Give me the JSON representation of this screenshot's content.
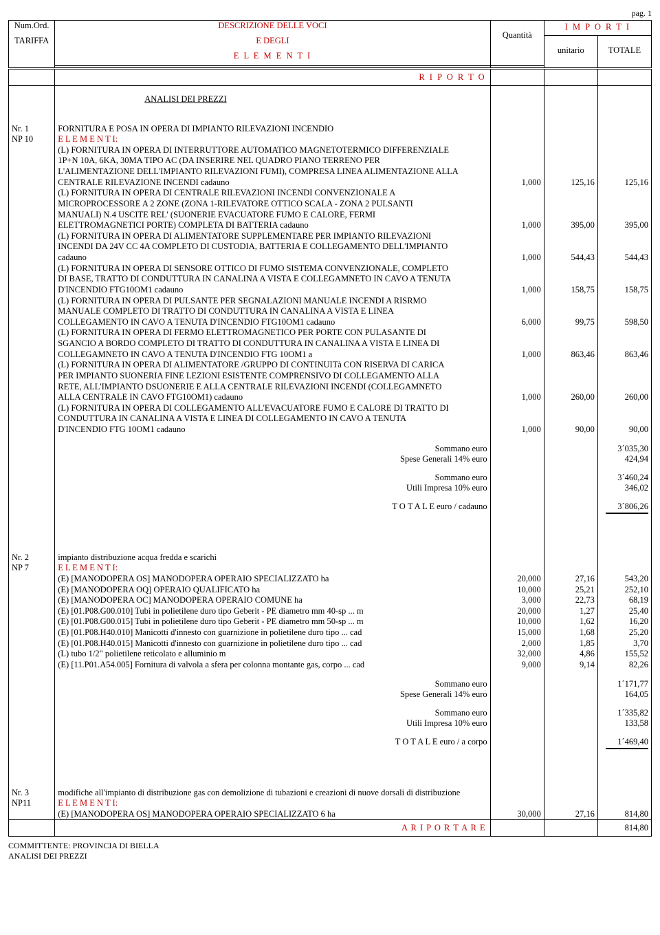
{
  "page_label": "pag. 1",
  "header": {
    "numord": "Num.Ord.",
    "tariffa": "TARIFFA",
    "desc1": "DESCRIZIONE DELLE VOCI",
    "desc2": "E DEGLI",
    "desc3": "E L E M E N T I",
    "quantita": "Quantità",
    "importi": "I M P O R T I",
    "unitario": "unitario",
    "totale": "TOTALE",
    "riporto": "R I P O R T O"
  },
  "section_title": "ANALISI DEI PREZZI",
  "entry1": {
    "nr": "Nr. 1",
    "code": "NP 10",
    "title": "FORNITURA E POSA IN OPERA DI IMPIANTO RILEVAZIONI INCENDIO",
    "elementi_label": "E L E M E N T I:",
    "lines": [
      {
        "text": "(L)  FORNITURA IN OPERA DI INTERRUTTORE AUTOMATICO MAGNETOTERMICO DIFFERENZIALE"
      },
      {
        "text": "1P+N 10A, 6KA, 30MA TIPO AC (DA INSERIRE NEL QUADRO PIANO TERRENO PER"
      },
      {
        "text": "L'ALIMENTAZIONE DELL'IMPIANTO RILEVAZIONI FUMI), COMPRESA LINEA ALIMENTAZIONE ALLA"
      },
      {
        "text": "CENTRALE RILEVAZIONE INCENDI cadauno",
        "qty": "1,000",
        "unit": "125,16",
        "tot": "125,16"
      },
      {
        "text": "(L)  FORNITURA IN OPERA DI CENTRALE RILEVAZIONI INCENDI CONVENZIONALE A"
      },
      {
        "text": "MICROPROCESSORE A 2 ZONE (ZONA 1-RILEVATORE OTTICO SCALA - ZONA 2 PULSANTI"
      },
      {
        "text": "MANUALI) N.4 USCITE REL' (SUONERIE EVACUATORE FUMO E CALORE, FERMI"
      },
      {
        "text": "ELETTROMAGNETICI PORTE) COMPLETA DI BATTERIA cadauno",
        "qty": "1,000",
        "unit": "395,00",
        "tot": "395,00"
      },
      {
        "text": "(L)  FORNITURA IN OPERA DI ALIMENTATORE SUPPLEMENTARE PER IMPIANTO RILEVAZIONI"
      },
      {
        "text": "INCENDI DA 24V CC 4A COMPLETO DI CUSTODIA, BATTERIA E COLLEGAMENTO DELL'IMPIANTO"
      },
      {
        "text": "cadauno",
        "qty": "1,000",
        "unit": "544,43",
        "tot": "544,43"
      },
      {
        "text": "(L)  FORNITURA IN OPERA DI SENSORE OTTICO DI FUMO SISTEMA CONVENZIONALE, COMPLETO"
      },
      {
        "text": "DI BASE, TRATTO DI CONDUTTURA IN CANALINA A VISTA E COLLEGAMNETO IN CAVO A TENUTA"
      },
      {
        "text": "D'INCENDIO FTG10OM1 cadauno",
        "qty": "1,000",
        "unit": "158,75",
        "tot": "158,75"
      },
      {
        "text": "(L)  FORNITURA IN OPERA DI PULSANTE PER SEGNALAZIONI MANUALE INCENDI A RISRMO"
      },
      {
        "text": "MANUALE COMPLETO DI TRATTO DI CONDUTTURA IN CANALINA A VISTA E LINEA"
      },
      {
        "text": "COLLEGAMENTO IN CAVO A TENUTA D'INCENDIO FTG10OM1 cadauno",
        "qty": "6,000",
        "unit": "99,75",
        "tot": "598,50"
      },
      {
        "text": "(L)  FORNITURA IN OPERA DI FERMO ELETTROMAGNETICO PER PORTE CON PULASANTE DI"
      },
      {
        "text": "SGANCIO A BORDO COMPLETO DI TRATTO DI CONDUTTURA IN CANALINA A VISTA E LINEA DI"
      },
      {
        "text": "COLLEGAMNETO IN CAVO A TENUTA D'INCENDIO FTG 10OM1 a",
        "qty": "1,000",
        "unit": "863,46",
        "tot": "863,46"
      },
      {
        "text": "(L)  FORNITURA IN OPERA DI ALIMENTATORE /GRUPPO DI CONTINUITà CON RISERVA DI CARICA"
      },
      {
        "text": "PER IMPIANTO SUONERIA FINE LEZIONI ESISTENTE COMPRENSIVO DI COLLEGAMENTO ALLA"
      },
      {
        "text": "RETE, ALL'IMPIANTO DSUONERIE E ALLA CENTRALE RILEVAZIONI INCENDI (COLLEGAMNETO"
      },
      {
        "text": "ALLA CENTRALE IN CAVO FTG10OM1) cadauno",
        "qty": "1,000",
        "unit": "260,00",
        "tot": "260,00"
      },
      {
        "text": "(L)  FORNITURA IN OPERA DI COLLEGAMENTO ALL'EVACUATORE FUMO E CALORE DI TRATTO DI"
      },
      {
        "text": "CONDUTTURA IN CANALINA A VISTA E LINEA DI COLLEGAMENTO IN CAVO A TENUTA"
      },
      {
        "text": "D'INCENDIO FTG 10OM1 cadauno",
        "qty": "1,000",
        "unit": "90,00",
        "tot": "90,00"
      }
    ],
    "subtotals": {
      "sommano1_label": "Sommano euro",
      "sommano1_val": "3´035,30",
      "spese_label": "Spese Generali 14% euro",
      "spese_val": "424,94",
      "sommano2_label": "Sommano euro",
      "sommano2_val": "3´460,24",
      "utili_label": "Utili Impresa 10% euro",
      "utili_val": "346,02",
      "totale_label": "T O T A L E  euro / cadauno",
      "totale_val": "3´806,26"
    }
  },
  "entry2": {
    "nr": "Nr. 2",
    "code": "NP 7",
    "title": "impianto distribuzione acqua fredda e scarichi",
    "elementi_label": "E L E M E N T I:",
    "lines": [
      {
        "text": "(E) [MANODOPERA OS] MANODOPERA OPERAIO SPECIALIZZATO ha",
        "qty": "20,000",
        "unit": "27,16",
        "tot": "543,20"
      },
      {
        "text": "(E) [MANODOPERA OQ] OPERAIO QUALIFICATO ha",
        "qty": "10,000",
        "unit": "25,21",
        "tot": "252,10"
      },
      {
        "text": "(E) [MANODOPERA OC] MANODOPERA OPERAIO COMUNE ha",
        "qty": "3,000",
        "unit": "22,73",
        "tot": "68,19"
      },
      {
        "text": "(E) [01.P08.G00.010] Tubi in polietilene duro tipo Geberit - PE diametro mm 40-sp ... m",
        "qty": "20,000",
        "unit": "1,27",
        "tot": "25,40"
      },
      {
        "text": "(E) [01.P08.G00.015] Tubi in polietilene duro tipo Geberit - PE diametro mm 50-sp ... m",
        "qty": "10,000",
        "unit": "1,62",
        "tot": "16,20"
      },
      {
        "text": "(E) [01.P08.H40.010] Manicotti d'innesto con guarnizione in polietilene duro tipo ... cad",
        "qty": "15,000",
        "unit": "1,68",
        "tot": "25,20"
      },
      {
        "text": "(E) [01.P08.H40.015] Manicotti d'innesto con guarnizione in polietilene duro tipo ... cad",
        "qty": "2,000",
        "unit": "1,85",
        "tot": "3,70"
      },
      {
        "text": "(L)  tubo 1/2\" polietilene reticolato e alluminio m",
        "qty": "32,000",
        "unit": "4,86",
        "tot": "155,52"
      },
      {
        "text": "(E) [11.P01.A54.005] Fornitura di valvola a sfera per colonna montante gas, corpo ... cad",
        "qty": "9,000",
        "unit": "9,14",
        "tot": "82,26"
      }
    ],
    "subtotals": {
      "sommano1_label": "Sommano euro",
      "sommano1_val": "1´171,77",
      "spese_label": "Spese Generali 14% euro",
      "spese_val": "164,05",
      "sommano2_label": "Sommano euro",
      "sommano2_val": "1´335,82",
      "utili_label": "Utili Impresa 10% euro",
      "utili_val": "133,58",
      "totale_label": "T O T A L E  euro / a corpo",
      "totale_val": "1´469,40"
    }
  },
  "entry3": {
    "nr": "Nr. 3",
    "code": "NP11",
    "title": "modifiche all'impianto di distribuzione gas con demolizione di tubazioni e creazioni di nuove dorsali di distribuzione",
    "elementi_label": "E L E M E N T I:",
    "lines": [
      {
        "text": "(E) [MANODOPERA OS] MANODOPERA OPERAIO SPECIALIZZATO 6 ha",
        "qty": "30,000",
        "unit": "27,16",
        "tot": "814,80"
      }
    ],
    "ariportare_label": "A  R I P O R T A R E",
    "ariportare_val": "814,80"
  },
  "footer": {
    "committente": "COMMITTENTE: PROVINCIA DI BIELLA",
    "analisi": "ANALISI DEI PREZZI"
  }
}
